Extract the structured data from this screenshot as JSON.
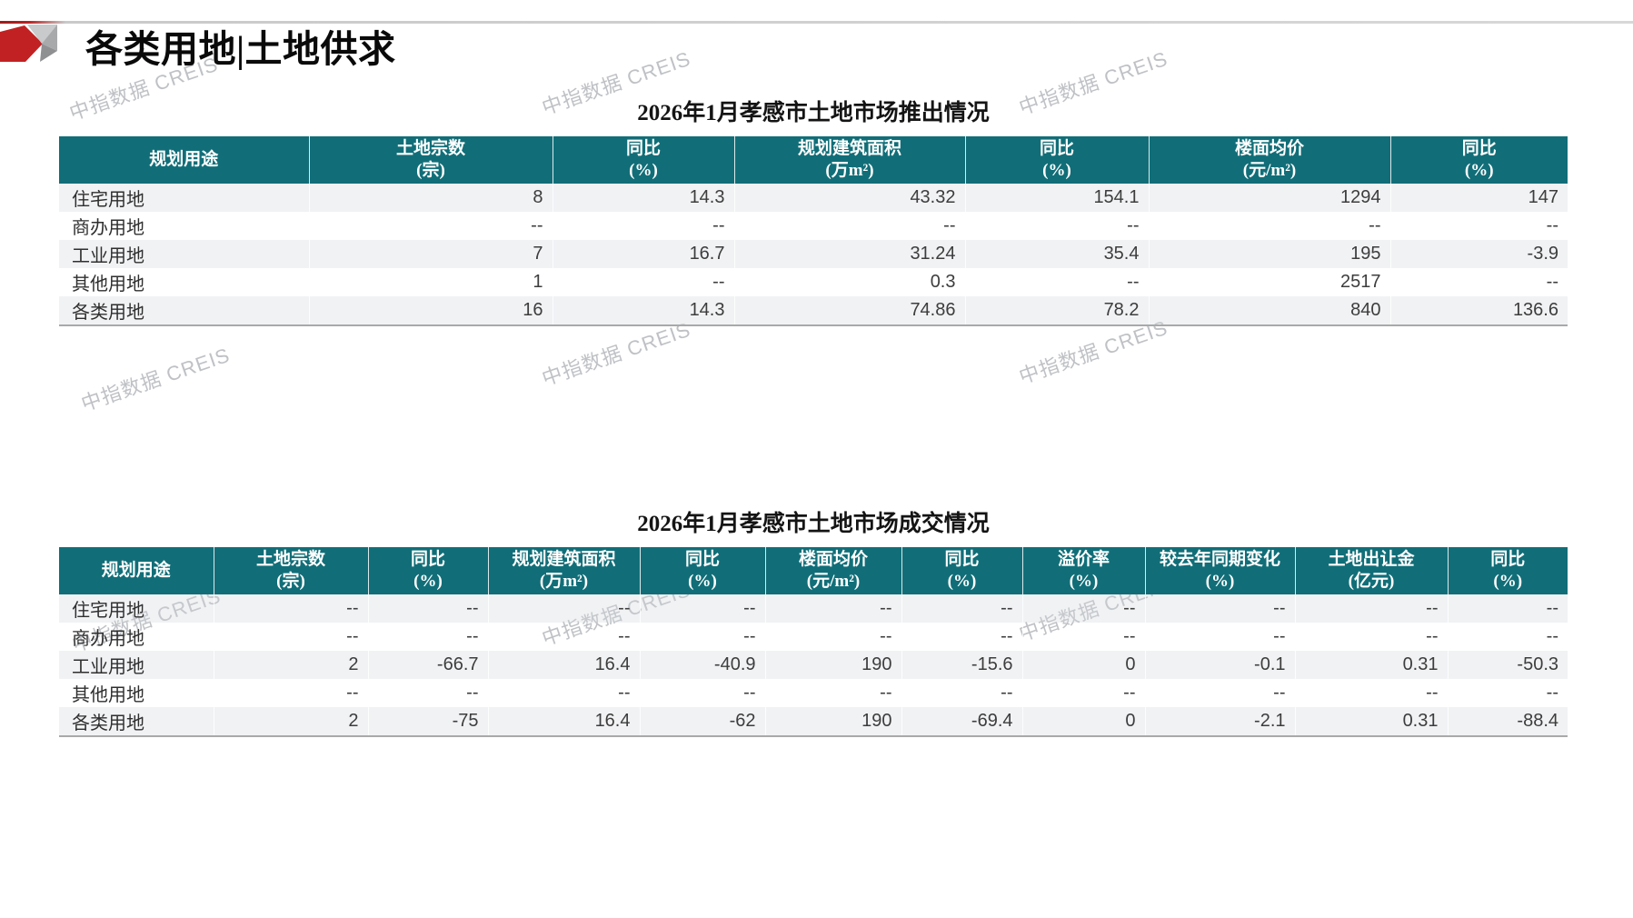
{
  "page_title": "各类用地|土地供求",
  "watermark_text": "中指数据 CREIS",
  "colors": {
    "header_bg": "#116e78",
    "accent_red": "#bb2121"
  },
  "tables": [
    {
      "title": "2026年1月孝感市土地市场推出情况",
      "columns": [
        {
          "label": "规划用途",
          "unit": ""
        },
        {
          "label": "土地宗数",
          "unit": "(宗)"
        },
        {
          "label": "同比",
          "unit": "(%)"
        },
        {
          "label": "规划建筑面积",
          "unit": "(万m²)"
        },
        {
          "label": "同比",
          "unit": "(%)"
        },
        {
          "label": "楼面均价",
          "unit": "(元/m²)"
        },
        {
          "label": "同比",
          "unit": "(%)"
        }
      ],
      "rows": [
        {
          "label": "住宅用地",
          "values": [
            "8",
            "14.3",
            "43.32",
            "154.1",
            "1294",
            "147"
          ]
        },
        {
          "label": "商办用地",
          "values": [
            "--",
            "--",
            "--",
            "--",
            "--",
            "--"
          ]
        },
        {
          "label": "工业用地",
          "values": [
            "7",
            "16.7",
            "31.24",
            "35.4",
            "195",
            "-3.9"
          ]
        },
        {
          "label": "其他用地",
          "values": [
            "1",
            "--",
            "0.3",
            "--",
            "2517",
            "--"
          ]
        },
        {
          "label": "各类用地",
          "values": [
            "16",
            "14.3",
            "74.86",
            "78.2",
            "840",
            "136.6"
          ]
        }
      ]
    },
    {
      "title": "2026年1月孝感市土地市场成交情况",
      "columns": [
        {
          "label": "规划用途",
          "unit": ""
        },
        {
          "label": "土地宗数",
          "unit": "(宗)"
        },
        {
          "label": "同比",
          "unit": "(%)"
        },
        {
          "label": "规划建筑面积",
          "unit": "(万m²)"
        },
        {
          "label": "同比",
          "unit": "(%)"
        },
        {
          "label": "楼面均价",
          "unit": "(元/m²)"
        },
        {
          "label": "同比",
          "unit": "(%)"
        },
        {
          "label": "溢价率",
          "unit": "(%)"
        },
        {
          "label": "较去年同期变化",
          "unit": "(%)"
        },
        {
          "label": "土地出让金",
          "unit": "(亿元)"
        },
        {
          "label": "同比",
          "unit": "(%)"
        }
      ],
      "rows": [
        {
          "label": "住宅用地",
          "values": [
            "--",
            "--",
            "--",
            "--",
            "--",
            "--",
            "--",
            "--",
            "--",
            "--"
          ]
        },
        {
          "label": "商办用地",
          "values": [
            "--",
            "--",
            "--",
            "--",
            "--",
            "--",
            "--",
            "--",
            "--",
            "--"
          ]
        },
        {
          "label": "工业用地",
          "values": [
            "2",
            "-66.7",
            "16.4",
            "-40.9",
            "190",
            "-15.6",
            "0",
            "-0.1",
            "0.31",
            "-50.3"
          ]
        },
        {
          "label": "其他用地",
          "values": [
            "--",
            "--",
            "--",
            "--",
            "--",
            "--",
            "--",
            "--",
            "--",
            "--"
          ]
        },
        {
          "label": "各类用地",
          "values": [
            "2",
            "-75",
            "16.4",
            "-62",
            "190",
            "-69.4",
            "0",
            "-2.1",
            "0.31",
            "-88.4"
          ]
        }
      ]
    }
  ]
}
